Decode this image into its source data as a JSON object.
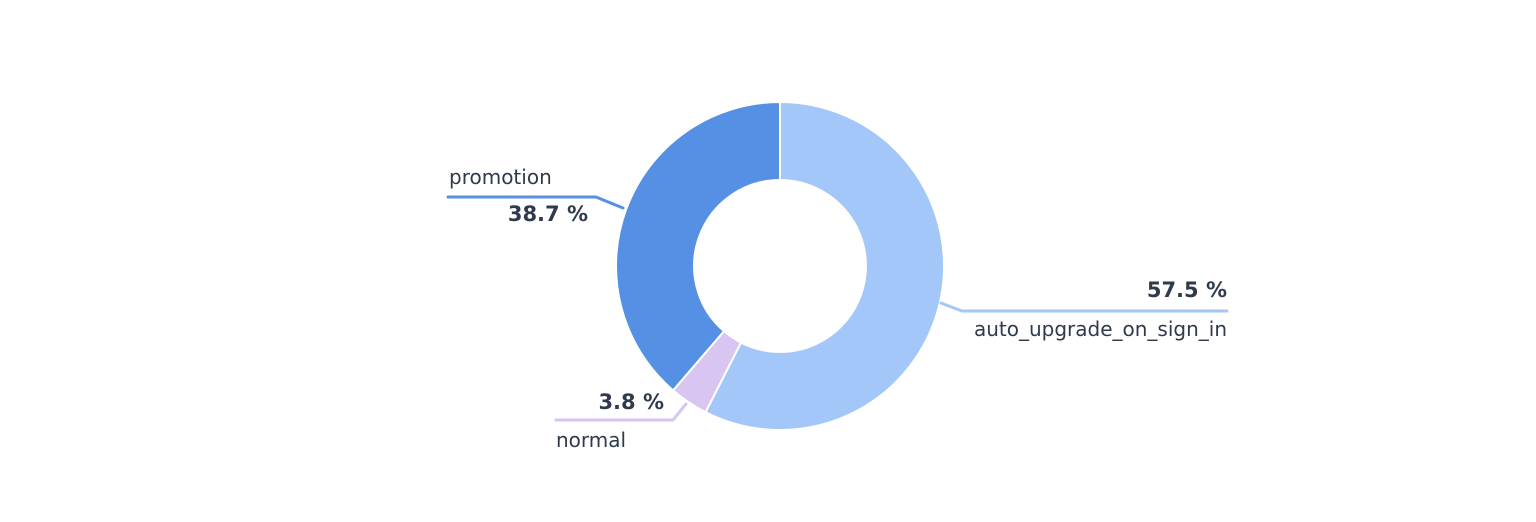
{
  "canvas": {
    "background": "#ffffff"
  },
  "chart_data": {
    "type": "pie",
    "variant": "donut",
    "title": "",
    "legend": "none",
    "grid": false,
    "unit": "%",
    "start_angle_deg": 0,
    "direction": "clockwise",
    "inner_radius_ratio": 0.524,
    "separator_color": "#ffffff",
    "text_color": "#2f3b4c",
    "slices": [
      {
        "label": "auto_upgrade_on_sign_in",
        "value": 57.5,
        "display": "57.5 %",
        "color": "#a2c7f8"
      },
      {
        "label": "normal",
        "value": 3.8,
        "display": "3.8 %",
        "color": "#d9c5f2"
      },
      {
        "label": "promotion",
        "value": 38.7,
        "display": "38.7 %",
        "color": "#5590e4"
      }
    ]
  }
}
